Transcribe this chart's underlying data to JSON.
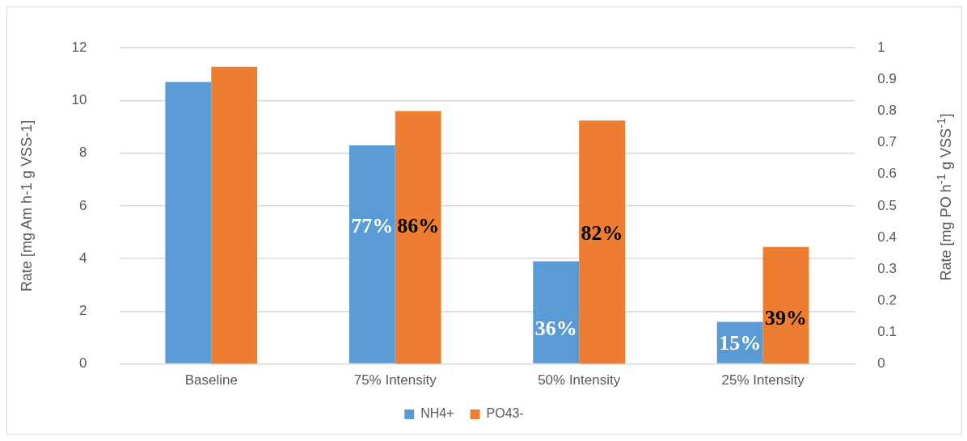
{
  "chart_data": {
    "type": "bar",
    "categories": [
      "Baseline",
      "75% Intensity",
      "50% Intensity",
      "25% Intensity"
    ],
    "ylabel": "Rate [mg Am h-1 g VSS-1]",
    "y2label": "Rate [mg PO h$^{-1}$ g VSS$^{-1}$]",
    "ylim": [
      0,
      12
    ],
    "yticks": [
      0,
      2,
      4,
      6,
      8,
      10,
      12
    ],
    "y2lim": [
      0,
      1
    ],
    "y2ticks": [
      0,
      0.1,
      0.2,
      0.3,
      0.4,
      0.5,
      0.6,
      0.7,
      0.8,
      0.9,
      1
    ],
    "grid": "y",
    "legend": "bottom",
    "annotations": [
      {
        "text": "77%",
        "x": "75% Intensity",
        "y": 5.2
      },
      {
        "text": "86%",
        "x": "75% Intensity",
        "y": 5.2
      },
      {
        "text": "36%",
        "x": "50% Intensity",
        "y": 1.3
      },
      {
        "text": "82%",
        "x": "50% Intensity",
        "y": 4.9
      },
      {
        "text": "15%",
        "x": "25% Intensity",
        "y": 0.75
      },
      {
        "text": "39%",
        "x": "25% Intensity",
        "y": 1.7
      }
    ],
    "series": [
      {
        "name": "NH4+",
        "color": "#5b9bd5",
        "values": [
          10.7,
          8.3,
          3.9,
          1.6
        ]
      },
      {
        "name": "PO43-",
        "color": "#ed7d31",
        "axis": "y2",
        "values": [
          0.94,
          0.8,
          0.77,
          0.37
        ]
      }
    ]
  }
}
